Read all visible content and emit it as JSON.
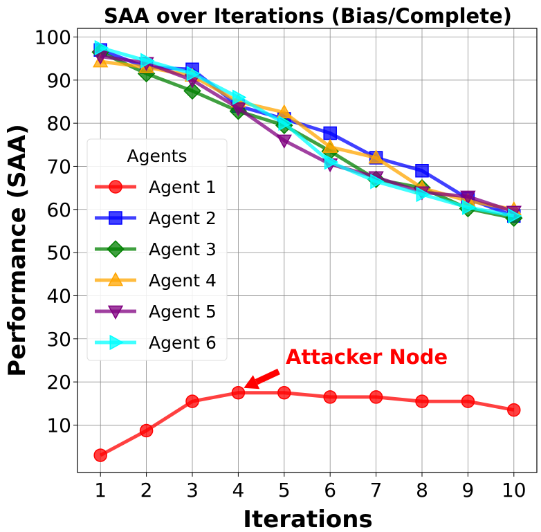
{
  "chart_data": {
    "type": "line",
    "title": "SAA over Iterations (Bias/Complete)",
    "xlabel": "Iterations",
    "ylabel": "Performance (SAA)",
    "x": [
      1,
      2,
      3,
      4,
      5,
      6,
      7,
      8,
      9,
      10
    ],
    "xlim": [
      0.5,
      10.5
    ],
    "ylim": [
      -1,
      102
    ],
    "yticks": [
      10,
      20,
      30,
      40,
      50,
      60,
      70,
      80,
      90,
      100
    ],
    "grid": true,
    "legend": {
      "title": "Agents",
      "placement": "center-left"
    },
    "series": [
      {
        "name": "Agent 1",
        "color": "#ff0000",
        "marker": "circle",
        "values": [
          3,
          8.7,
          15.5,
          17.5,
          17.5,
          16.5,
          16.5,
          15.5,
          15.5,
          13.5
        ]
      },
      {
        "name": "Agent 2",
        "color": "#0000ff",
        "marker": "square",
        "values": [
          97,
          93,
          92.5,
          84,
          81,
          77.7,
          72,
          69,
          62.5,
          58.5
        ]
      },
      {
        "name": "Agent 3",
        "color": "#008000",
        "marker": "diamond",
        "values": [
          96.5,
          91.5,
          87.5,
          82.8,
          79.5,
          73.5,
          67,
          65,
          60.2,
          58
        ]
      },
      {
        "name": "Agent 4",
        "color": "#ffa500",
        "marker": "triangle-up",
        "values": [
          94.3,
          93,
          91,
          85,
          82.5,
          74.5,
          72,
          65,
          62,
          60
        ]
      },
      {
        "name": "Agent 5",
        "color": "#800080",
        "marker": "triangle-down",
        "values": [
          95.5,
          94,
          90,
          83.5,
          76,
          70.5,
          67.5,
          64,
          63,
          59.5
        ]
      },
      {
        "name": "Agent 6",
        "color": "#00ffff",
        "marker": "triangle-right",
        "values": [
          97.5,
          94.5,
          91.5,
          86,
          80,
          71,
          66.5,
          63.5,
          60.5,
          58.5
        ]
      }
    ],
    "annotation": {
      "text": "Attacker Node",
      "color": "#ff0000",
      "target": {
        "x": 4,
        "y": 17.5
      }
    }
  }
}
